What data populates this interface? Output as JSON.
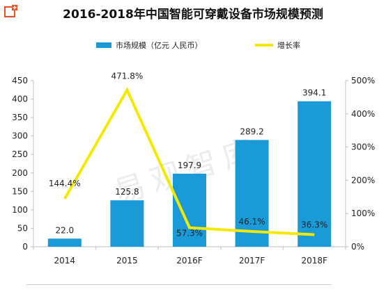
{
  "chart_data": {
    "type": "bar",
    "title": "2016-2018年中国智能可穿戴设备市场规模预测",
    "categories": [
      "2014",
      "2015",
      "2016F",
      "2017F",
      "2018F"
    ],
    "series": [
      {
        "name": "市场规模（亿元 人民币）",
        "type": "bar",
        "axis": "left",
        "color": "#1a9ad6",
        "values": [
          22.0,
          125.8,
          197.9,
          289.2,
          394.1
        ],
        "labels": [
          "22.0",
          "125.8",
          "197.9",
          "289.2",
          "394.1"
        ]
      },
      {
        "name": "增长率",
        "type": "line",
        "axis": "right",
        "color": "#f5e900",
        "values": [
          144.4,
          471.8,
          57.3,
          46.1,
          36.3
        ],
        "labels": [
          "144.4%",
          "471.8%",
          "57.3%",
          "46.1%",
          "36.3%"
        ]
      }
    ],
    "y_left": {
      "min": 0,
      "max": 450,
      "ticks": [
        "0",
        "50",
        "100",
        "150",
        "200",
        "250",
        "300",
        "350",
        "400",
        "450"
      ]
    },
    "y_right": {
      "min": 0,
      "max": 500,
      "unit": "%",
      "ticks": [
        "0%",
        "100%",
        "200%",
        "300%",
        "400%",
        "500%"
      ]
    },
    "legend_position": "top-center",
    "grid": false
  },
  "watermark": "易观智库",
  "colors": {
    "axis": "#bfbfbf",
    "text": "#222222",
    "badge": "#e8501e"
  }
}
